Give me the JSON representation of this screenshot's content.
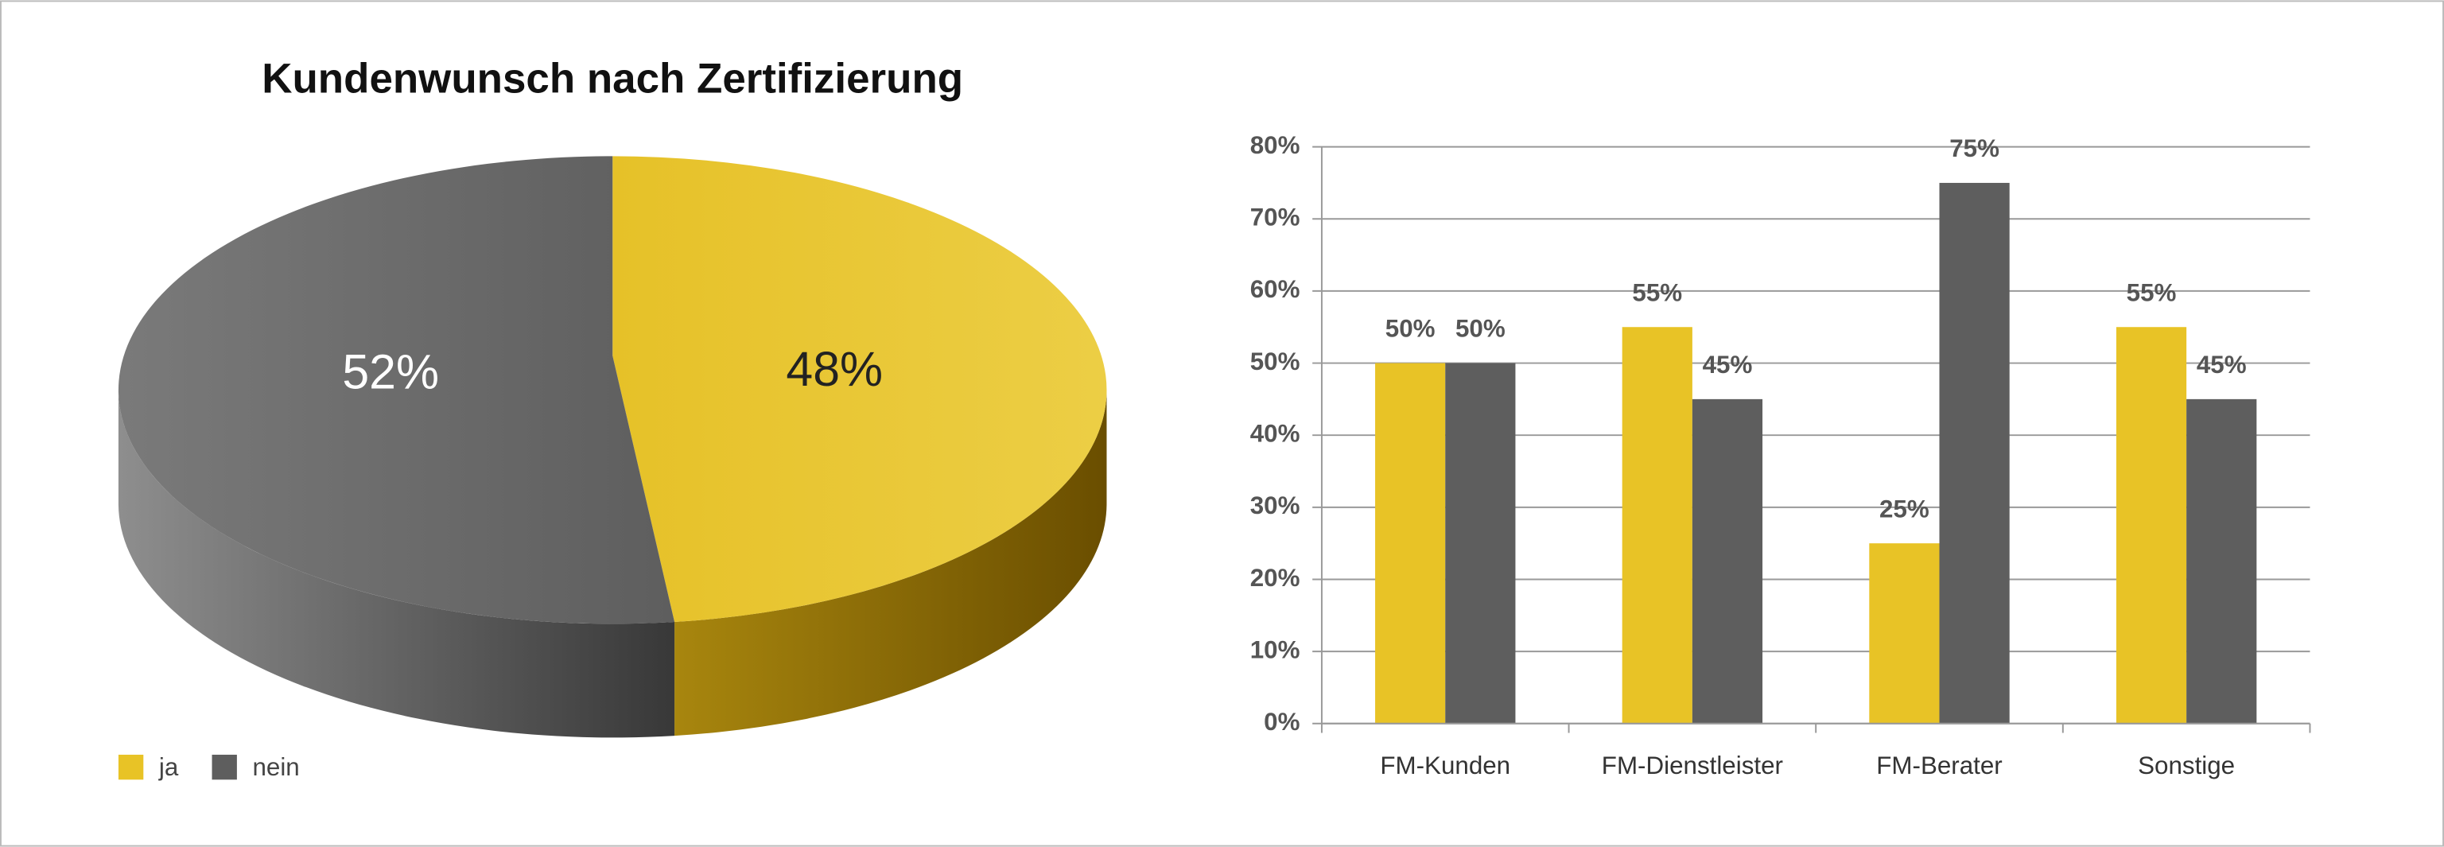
{
  "chart_data": [
    {
      "type": "pie",
      "title": "Kundenwunsch nach Zertifizierung",
      "categories": [
        "ja",
        "nein"
      ],
      "values": [
        48,
        52
      ],
      "value_labels": [
        "48%",
        "52%"
      ],
      "colors": [
        "#e8c326",
        "#5e5e5e"
      ],
      "legend": "bottom-left"
    },
    {
      "type": "bar",
      "categories": [
        "FM-Kunden",
        "FM-Dienstleister",
        "FM-Berater",
        "Sonstige"
      ],
      "series": [
        {
          "color": "#e8c326",
          "values": [
            50,
            55,
            25,
            55
          ],
          "value_labels": [
            "50%",
            "55%",
            "25%",
            "55%"
          ]
        },
        {
          "color": "#5e5e5e",
          "values": [
            50,
            45,
            75,
            45
          ],
          "value_labels": [
            "50%",
            "45%",
            "75%",
            "45%"
          ]
        }
      ],
      "ylim": [
        0,
        80
      ],
      "yticks": [
        {
          "value": 0,
          "label": "0%"
        },
        {
          "value": 10,
          "label": "10%"
        },
        {
          "value": 20,
          "label": "20%"
        },
        {
          "value": 30,
          "label": "30%"
        },
        {
          "value": 40,
          "label": "40%"
        },
        {
          "value": 50,
          "label": "50%"
        },
        {
          "value": 60,
          "label": "60%"
        },
        {
          "value": 70,
          "label": "70%"
        },
        {
          "value": 80,
          "label": "80%"
        }
      ],
      "grid": true
    }
  ]
}
